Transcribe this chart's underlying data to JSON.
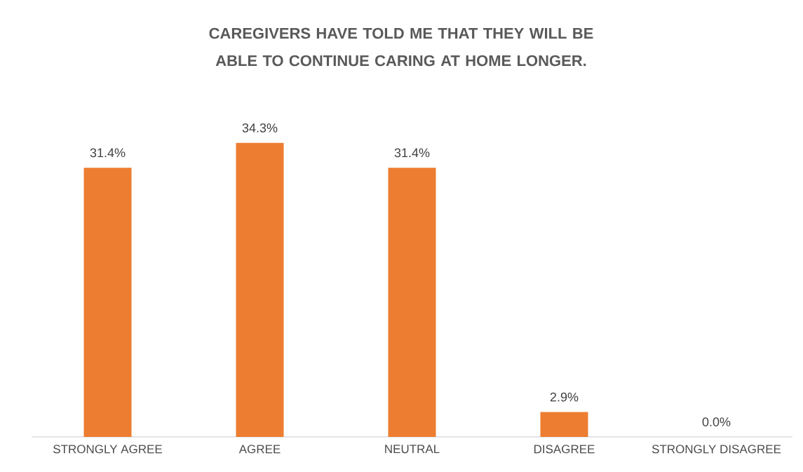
{
  "chart_data": {
    "type": "bar",
    "title": "CAREGIVERS HAVE TOLD ME THAT THEY WILL BE ABLE TO CONTINUE CARING AT HOME LONGER.",
    "categories": [
      "STRONGLY AGREE",
      "AGREE",
      "NEUTRAL",
      "DISAGREE",
      "STRONGLY DISAGREE"
    ],
    "values": [
      31.4,
      34.3,
      31.4,
      2.9,
      0.0
    ],
    "value_labels": [
      "31.4%",
      "34.3%",
      "31.4%",
      "2.9%",
      "0.0%"
    ],
    "color": "#ed7d31"
  }
}
